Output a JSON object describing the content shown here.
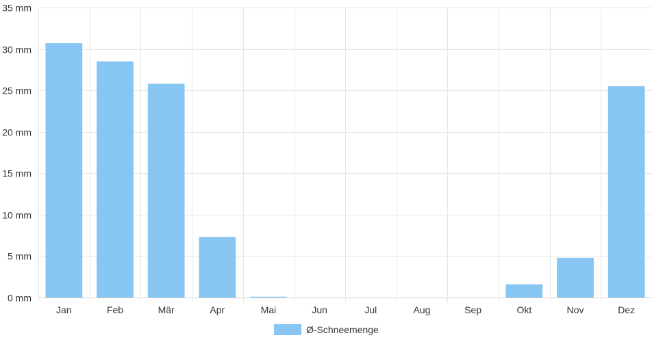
{
  "chart_data": {
    "type": "bar",
    "categories": [
      "Jan",
      "Feb",
      "Mär",
      "Apr",
      "Mai",
      "Jun",
      "Jul",
      "Aug",
      "Sep",
      "Okt",
      "Nov",
      "Dez"
    ],
    "series": [
      {
        "name": "Ø-Schneemenge",
        "values": [
          30.7,
          28.5,
          25.8,
          7.3,
          0.1,
          0,
          0,
          0,
          0,
          1.6,
          4.8,
          25.5
        ]
      }
    ],
    "ylim": [
      0,
      35
    ],
    "yticks": [
      0,
      5,
      10,
      15,
      20,
      25,
      30,
      35
    ],
    "yunit": "mm",
    "ytick_labels": [
      "0 mm",
      "5 mm",
      "10 mm",
      "15 mm",
      "20 mm",
      "25 mm",
      "30 mm",
      "35 mm"
    ],
    "grid": true,
    "legend_position": "bottom-center",
    "colors": {
      "bar": "#87c6f2",
      "grid": "#e6e6e6"
    }
  }
}
